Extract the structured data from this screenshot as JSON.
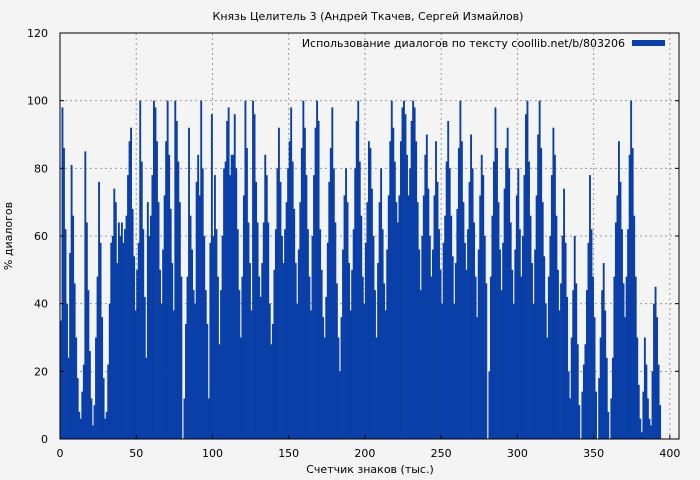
{
  "chart_data": {
    "type": "bar",
    "title": "Князь Целитель 3 (Андрей Ткачев, Сергей Измайлов)",
    "xlabel": "Счетчик знаков (тыс.)",
    "ylabel": "% диалогов",
    "xlim": [
      0,
      406
    ],
    "ylim": [
      0,
      120
    ],
    "x_ticks": [
      0,
      50,
      100,
      150,
      200,
      250,
      300,
      350,
      400
    ],
    "y_ticks": [
      0,
      20,
      40,
      60,
      80,
      100,
      120
    ],
    "grid": true,
    "legend_position": "top-right",
    "series": [
      {
        "name": "Использование диалогов по тексту coollib.net/b/803206",
        "color": "#0a3fa8",
        "x_start": 0,
        "x_step": 1,
        "values": [
          35,
          98,
          86,
          62,
          40,
          24,
          55,
          81,
          66,
          46,
          30,
          18,
          8,
          6,
          14,
          22,
          85,
          64,
          44,
          26,
          12,
          4,
          10,
          30,
          48,
          76,
          58,
          36,
          18,
          6,
          8,
          22,
          40,
          58,
          60,
          74,
          70,
          52,
          64,
          60,
          64,
          58,
          62,
          66,
          78,
          88,
          92,
          68,
          54,
          38,
          50,
          58,
          100,
          82,
          62,
          42,
          24,
          70,
          60,
          66,
          78,
          100,
          98,
          88,
          70,
          50,
          40,
          56,
          72,
          88,
          100,
          84,
          68,
          52,
          38,
          100,
          94,
          82,
          70,
          48,
          0,
          12,
          34,
          48,
          92,
          66,
          56,
          44,
          40,
          76,
          84,
          72,
          100,
          80,
          60,
          44,
          34,
          12,
          58,
          96,
          60,
          78,
          62,
          48,
          28,
          44,
          60,
          80,
          82,
          94,
          98,
          78,
          84,
          84,
          96,
          80,
          62,
          44,
          30,
          48,
          72,
          100,
          86,
          64,
          52,
          38,
          100,
          96,
          76,
          64,
          48,
          42,
          52,
          64,
          84,
          78,
          64,
          40,
          28,
          34,
          50,
          62,
          80,
          92,
          76,
          60,
          52,
          62,
          70,
          80,
          88,
          98,
          82,
          68,
          52,
          40,
          56,
          70,
          86,
          100,
          92,
          78,
          62,
          48,
          38,
          60,
          78,
          92,
          100,
          94,
          62,
          50,
          36,
          30,
          42,
          58,
          76,
          86,
          98,
          80,
          64,
          46,
          30,
          20,
          36,
          56,
          72,
          80,
          70,
          52,
          38,
          50,
          62,
          80,
          94,
          100,
          82,
          66,
          48,
          40,
          58,
          70,
          88,
          86,
          74,
          60,
          44,
          30,
          52,
          70,
          80,
          62,
          46,
          38,
          56,
          72,
          88,
          100,
          92,
          82,
          70,
          64,
          72,
          88,
          98,
          100,
          96,
          84,
          72,
          80,
          94,
          100,
          98,
          88,
          70,
          56,
          44,
          60,
          72,
          84,
          90,
          74,
          60,
          48,
          56,
          72,
          88,
          76,
          62,
          50,
          40,
          58,
          66,
          82,
          94,
          80,
          66,
          54,
          40,
          52,
          68,
          86,
          100,
          88,
          70,
          58,
          50,
          62,
          76,
          90,
          80,
          64,
          48,
          36,
          56,
          72,
          84,
          78,
          60,
          46,
          0,
          20,
          48,
          66,
          82,
          98,
          86,
          70,
          56,
          44,
          58,
          74,
          86,
          92,
          80,
          64,
          50,
          40,
          56,
          72,
          80,
          62,
          48,
          60,
          78,
          96,
          100,
          82,
          66,
          52,
          40,
          56,
          72,
          90,
          100,
          86,
          70,
          54,
          40,
          30,
          48,
          60,
          78,
          92,
          84,
          66,
          50,
          38,
          46,
          60,
          74,
          58,
          42,
          20,
          12,
          30,
          44,
          60,
          46,
          28,
          10,
          0,
          14,
          22,
          28,
          44,
          58,
          78,
          62,
          48,
          36,
          14,
          0,
          18,
          30,
          44,
          52,
          38,
          24,
          8,
          0,
          12,
          24,
          48,
          64,
          72,
          88,
          76,
          62,
          46,
          36,
          48,
          62,
          84,
          100,
          86,
          66,
          48,
          30,
          16,
          6,
          2,
          14,
          30,
          22,
          12,
          6,
          4,
          20,
          40,
          45,
          36,
          22,
          10
        ]
      }
    ]
  }
}
